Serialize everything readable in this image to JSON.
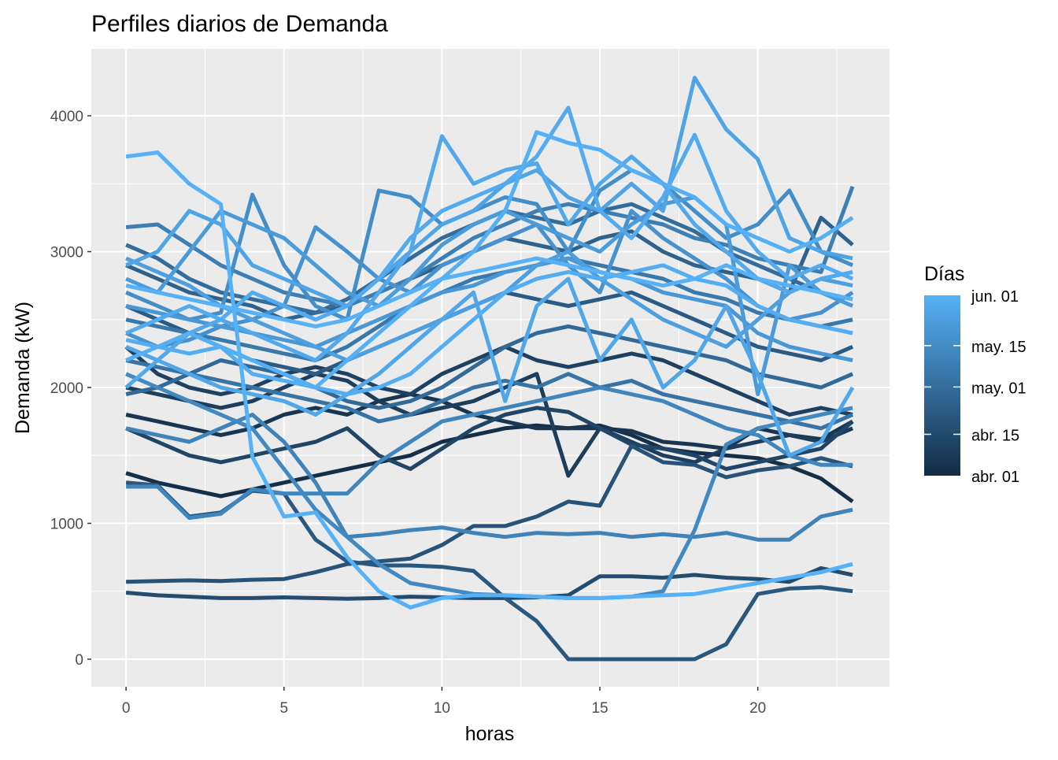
{
  "chart_data": {
    "type": "line",
    "title": "Perfiles diarios de Demanda",
    "xlabel": "horas",
    "ylabel": "Demanda (kW)",
    "xlim": [
      -1.1,
      24.17
    ],
    "ylim": [
      -203,
      4493
    ],
    "xticks": [
      0,
      5,
      10,
      15,
      20
    ],
    "yticks": [
      0,
      1000,
      2000,
      3000,
      4000
    ],
    "grid": true,
    "legend": {
      "title": "Días",
      "placement": "right",
      "day_range": [
        0,
        61
      ],
      "labels": [
        {
          "label": "jun. 01",
          "day": 61
        },
        {
          "label": "may. 15",
          "day": 44
        },
        {
          "label": "may. 01",
          "day": 30
        },
        {
          "label": "abr. 15",
          "day": 14
        },
        {
          "label": "abr. 01",
          "day": 0
        }
      ],
      "color_low": "#132B43",
      "color_high": "#56B1F7"
    },
    "x": [
      0,
      1,
      2,
      3,
      4,
      5,
      6,
      7,
      8,
      9,
      10,
      11,
      12,
      13,
      14,
      15,
      16,
      17,
      18,
      19,
      20,
      21,
      22,
      23
    ],
    "series": [
      {
        "day": 2,
        "values": [
          1370,
          1300,
          1250,
          1200,
          1250,
          1300,
          1350,
          1400,
          1450,
          1500,
          1600,
          1650,
          1700,
          1720,
          1700,
          1720,
          1650,
          1550,
          1520,
          1500,
          1480,
          1420,
          1330,
          1160
        ]
      },
      {
        "day": 5,
        "values": [
          1800,
          1750,
          1700,
          1650,
          1700,
          1800,
          1850,
          1800,
          1900,
          1950,
          1900,
          1800,
          1750,
          1700,
          1700,
          1700,
          1680,
          1600,
          1580,
          1550,
          1700,
          1650,
          1620,
          1750
        ]
      },
      {
        "day": 8,
        "values": [
          2000,
          1950,
          1900,
          1850,
          1900,
          2000,
          2100,
          2050,
          1900,
          1800,
          1850,
          1900,
          2000,
          2100,
          1350,
          1700,
          1600,
          1500,
          1450,
          1550,
          1600,
          1650,
          1600,
          1700
        ]
      },
      {
        "day": 10,
        "values": [
          2300,
          2100,
          2000,
          1950,
          2000,
          2100,
          2150,
          2100,
          2000,
          1950,
          2100,
          2200,
          2300,
          2200,
          2150,
          2200,
          2250,
          2200,
          2100,
          2000,
          1900,
          1800,
          1850,
          1800
        ]
      },
      {
        "day": 12,
        "values": [
          1700,
          1600,
          1500,
          1450,
          1500,
          1550,
          1600,
          1700,
          1500,
          1400,
          1550,
          1700,
          1800,
          1850,
          1820,
          1700,
          1580,
          1550,
          1500,
          1400,
          1450,
          1500,
          1550,
          1750
        ]
      },
      {
        "day": 15,
        "values": [
          490,
          470,
          460,
          450,
          450,
          455,
          450,
          445,
          450,
          460,
          455,
          450,
          450,
          455,
          470,
          610,
          610,
          600,
          620,
          600,
          590,
          570,
          670,
          620
        ]
      },
      {
        "day": 18,
        "values": [
          570,
          575,
          580,
          575,
          585,
          590,
          640,
          700,
          720,
          740,
          840,
          980,
          980,
          1050,
          1160,
          1130,
          1570,
          1450,
          1430,
          1340,
          1390,
          1420,
          1480,
          1420
        ]
      },
      {
        "day": 20,
        "values": [
          1300,
          1280,
          1050,
          1080,
          1240,
          1220,
          880,
          720,
          690,
          690,
          680,
          650,
          450,
          280,
          0,
          0,
          0,
          0,
          0,
          110,
          480,
          520,
          530,
          500
        ]
      },
      {
        "day": 22,
        "values": [
          2600,
          2500,
          2400,
          2300,
          2200,
          2150,
          2100,
          2200,
          2300,
          2400,
          2500,
          2600,
          2700,
          2650,
          2600,
          2650,
          2700,
          2600,
          2500,
          2400,
          2300,
          2250,
          2200,
          2300
        ]
      },
      {
        "day": 25,
        "values": [
          2900,
          2800,
          2700,
          2650,
          2600,
          2500,
          2550,
          2600,
          2700,
          2800,
          2900,
          3000,
          3100,
          3050,
          3000,
          3100,
          3150,
          3000,
          2900,
          2850,
          2800,
          2700,
          3250,
          3050
        ]
      },
      {
        "day": 28,
        "values": [
          1950,
          2000,
          2100,
          2200,
          2150,
          2100,
          2000,
          1900,
          1850,
          1900,
          2000,
          2150,
          2300,
          2400,
          2450,
          2400,
          2350,
          2300,
          2250,
          2200,
          2100,
          2050,
          2000,
          2100
        ]
      },
      {
        "day": 30,
        "values": [
          3050,
          2950,
          2800,
          2700,
          2650,
          2600,
          2550,
          2650,
          2800,
          2950,
          3100,
          3200,
          3300,
          3250,
          3200,
          3300,
          3350,
          3250,
          3150,
          3000,
          2900,
          2800,
          2700,
          2650
        ]
      },
      {
        "day": 33,
        "values": [
          2200,
          2150,
          2100,
          2050,
          2000,
          1950,
          1900,
          1850,
          1750,
          1800,
          1900,
          2000,
          2050,
          2000,
          2100,
          2000,
          2050,
          1950,
          1900,
          1850,
          1800,
          1750,
          1700,
          1800
        ]
      },
      {
        "day": 35,
        "values": [
          2500,
          2450,
          2400,
          2350,
          2300,
          2250,
          2200,
          2300,
          2450,
          2600,
          2700,
          2800,
          2850,
          2900,
          2950,
          2900,
          2850,
          2800,
          2700,
          2650,
          2550,
          2500,
          2450,
          2500
        ]
      },
      {
        "day": 38,
        "values": [
          3180,
          3200,
          3050,
          2900,
          2800,
          2700,
          2650,
          2600,
          2700,
          2800,
          2950,
          3100,
          3200,
          3300,
          3350,
          3300,
          3250,
          3200,
          3100,
          3050,
          2950,
          2900,
          2850,
          3480
        ]
      },
      {
        "day": 40,
        "values": [
          1700,
          1650,
          1600,
          1700,
          1800,
          1600,
          1300,
          900,
          920,
          950,
          970,
          930,
          900,
          930,
          920,
          930,
          900,
          920,
          900,
          930,
          880,
          880,
          1050,
          1100
        ]
      },
      {
        "day": 41,
        "values": [
          1270,
          1270,
          1040,
          1070,
          1250,
          1220,
          1220,
          1220,
          1450,
          1600,
          1750,
          1800,
          1850,
          1900,
          1950,
          2000,
          1950,
          1900,
          1800,
          1700,
          1650,
          1500,
          1430,
          1430
        ]
      },
      {
        "day": 43,
        "values": [
          2100,
          2000,
          1900,
          1800,
          1700,
          1400,
          1100,
          900,
          700,
          560,
          520,
          480,
          470,
          460,
          450,
          450,
          460,
          500,
          950,
          1580,
          1700,
          1750,
          1800,
          1850
        ]
      },
      {
        "day": 45,
        "values": [
          2700,
          2600,
          2500,
          2550,
          3420,
          2900,
          2600,
          2500,
          3450,
          3400,
          3200,
          3300,
          3400,
          3350,
          3000,
          3450,
          3600,
          3500,
          3300,
          3100,
          3200,
          3450,
          3000,
          2900
        ]
      },
      {
        "day": 47,
        "values": [
          2400,
          2300,
          2350,
          2450,
          2500,
          2600,
          3180,
          3000,
          2800,
          2700,
          2900,
          3000,
          3100,
          3200,
          2900,
          2700,
          3300,
          3100,
          2950,
          2800,
          2600,
          2500,
          2550,
          2700
        ]
      },
      {
        "day": 49,
        "values": [
          2600,
          2550,
          2500,
          2450,
          2400,
          2350,
          2300,
          2400,
          2500,
          2600,
          2700,
          2750,
          2850,
          2900,
          2950,
          2850,
          2800,
          2700,
          2650,
          2600,
          2400,
          2300,
          2250,
          2200
        ]
      },
      {
        "day": 51,
        "values": [
          2800,
          2700,
          3000,
          3300,
          3200,
          3100,
          2900,
          2700,
          2600,
          2800,
          3050,
          3200,
          3300,
          3200,
          3100,
          3000,
          3200,
          3350,
          3400,
          3200,
          1950,
          2900,
          2700,
          2600
        ]
      },
      {
        "day": 53,
        "values": [
          2950,
          2850,
          2750,
          2600,
          2500,
          2400,
          2300,
          2200,
          2300,
          2400,
          2500,
          2600,
          2700,
          2900,
          3000,
          2800,
          2650,
          2500,
          2400,
          2300,
          2500,
          2700,
          2800,
          2750
        ]
      },
      {
        "day": 55,
        "values": [
          2900,
          3000,
          3300,
          3200,
          2900,
          2800,
          2700,
          2600,
          2800,
          3000,
          3200,
          3300,
          3500,
          3600,
          3400,
          3300,
          3500,
          3300,
          4280,
          3900,
          3680,
          3100,
          3000,
          2950
        ]
      },
      {
        "day": 56,
        "values": [
          2300,
          2200,
          2100,
          2000,
          1950,
          1900,
          1800,
          1950,
          2100,
          2300,
          2500,
          2700,
          1900,
          2600,
          2800,
          2200,
          2500,
          2000,
          2200,
          2600,
          2100,
          1500,
          1600,
          2000
        ]
      },
      {
        "day": 57,
        "values": [
          2000,
          2200,
          2400,
          2500,
          2400,
          2300,
          2200,
          2400,
          2700,
          3000,
          3850,
          3500,
          3600,
          3650,
          3200,
          3500,
          3700,
          3500,
          3200,
          3000,
          2800,
          2700,
          2800,
          2850
        ]
      },
      {
        "day": 58,
        "values": [
          2400,
          2500,
          2600,
          2500,
          2700,
          2600,
          2500,
          2600,
          2800,
          3100,
          3300,
          3400,
          3500,
          3700,
          4060,
          3300,
          3100,
          3400,
          3860,
          3300,
          3000,
          2800,
          2900,
          2800
        ]
      },
      {
        "day": 59,
        "values": [
          2350,
          2300,
          2250,
          2300,
          2100,
          2050,
          2000,
          1950,
          2000,
          2100,
          2300,
          2500,
          2700,
          2800,
          2850,
          2800,
          2850,
          2900,
          2800,
          2750,
          2600,
          2500,
          2450,
          2400
        ]
      },
      {
        "day": 60,
        "values": [
          2200,
          2300,
          2400,
          2300,
          2200,
          2100,
          2000,
          2200,
          2400,
          2600,
          2800,
          3000,
          3300,
          3880,
          3800,
          3750,
          3600,
          3500,
          3400,
          3200,
          3100,
          3000,
          3100,
          3250
        ]
      },
      {
        "day": 61,
        "values": [
          3700,
          3730,
          3500,
          3350,
          1490,
          1050,
          1080,
          750,
          500,
          380,
          450,
          470,
          470,
          460,
          450,
          450,
          460,
          470,
          480,
          520,
          560,
          600,
          640,
          700
        ]
      },
      {
        "day": 61,
        "values": [
          2750,
          2700,
          2650,
          2600,
          2550,
          2500,
          2450,
          2500,
          2600,
          2700,
          2800,
          2850,
          2900,
          2950,
          2900,
          2850,
          2800,
          2750,
          2800,
          2900,
          2800,
          2750,
          2700,
          2650
        ]
      }
    ]
  }
}
